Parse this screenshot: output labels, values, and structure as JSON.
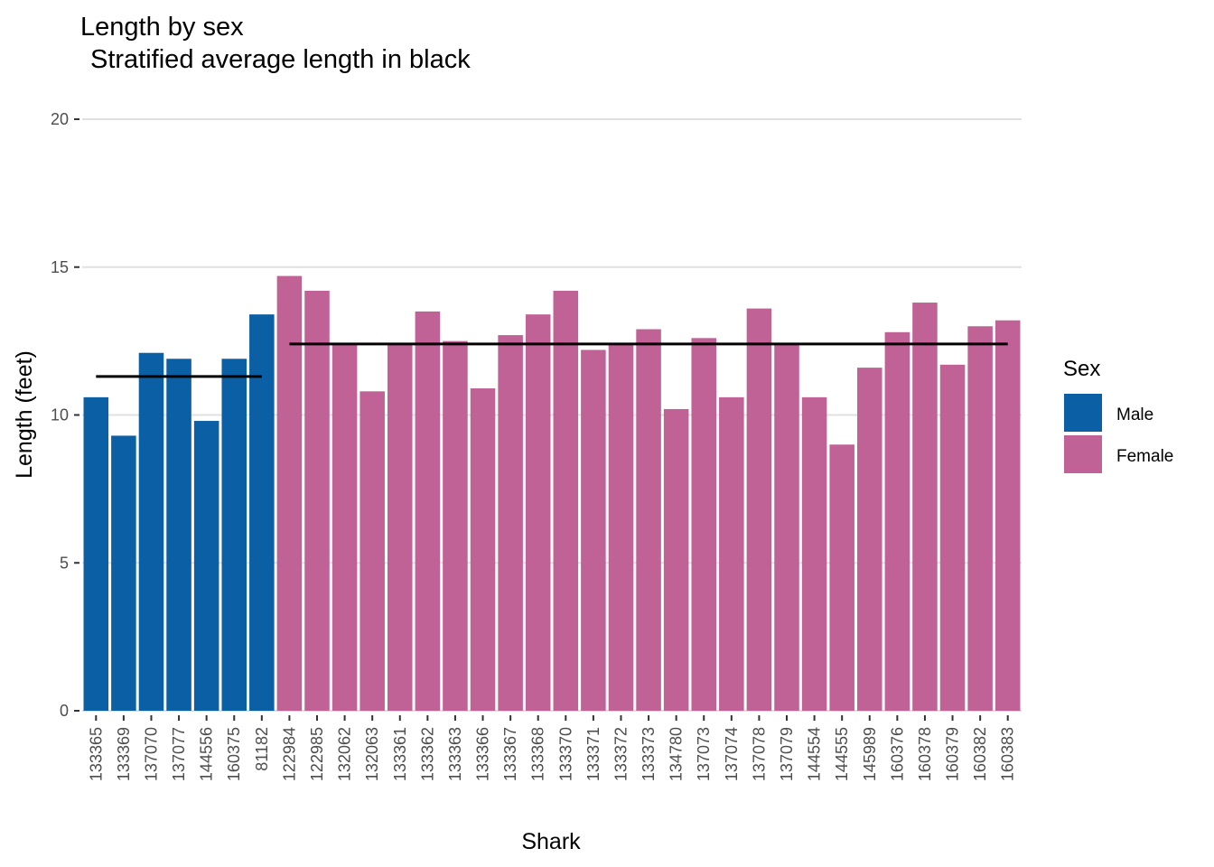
{
  "chart_data": {
    "type": "bar",
    "title": "Length by sex",
    "subtitle": "Stratified average length in black",
    "xlabel": "Shark",
    "ylabel": "Length (feet)",
    "ylim": [
      0,
      20
    ],
    "yticks": [
      0,
      5,
      10,
      15,
      20
    ],
    "grid": true,
    "legend": {
      "title": "Sex",
      "position": "right",
      "entries": [
        {
          "name": "Male",
          "color": "#0b5fa4"
        },
        {
          "name": "Female",
          "color": "#c06296"
        }
      ]
    },
    "categories": [
      "133365",
      "133369",
      "137070",
      "137077",
      "144556",
      "160375",
      "81182",
      "122984",
      "122985",
      "132062",
      "132063",
      "133361",
      "133362",
      "133363",
      "133366",
      "133367",
      "133368",
      "133370",
      "133371",
      "133372",
      "133373",
      "134780",
      "137073",
      "137074",
      "137078",
      "137079",
      "144554",
      "144555",
      "145989",
      "160376",
      "160378",
      "160379",
      "160382",
      "160383"
    ],
    "sex": [
      "Male",
      "Male",
      "Male",
      "Male",
      "Male",
      "Male",
      "Male",
      "Female",
      "Female",
      "Female",
      "Female",
      "Female",
      "Female",
      "Female",
      "Female",
      "Female",
      "Female",
      "Female",
      "Female",
      "Female",
      "Female",
      "Female",
      "Female",
      "Female",
      "Female",
      "Female",
      "Female",
      "Female",
      "Female",
      "Female",
      "Female",
      "Female",
      "Female",
      "Female"
    ],
    "values": [
      10.6,
      9.3,
      12.1,
      11.9,
      9.8,
      11.9,
      13.4,
      14.7,
      14.2,
      12.4,
      10.8,
      12.4,
      13.5,
      12.5,
      10.9,
      12.7,
      13.4,
      14.2,
      12.2,
      12.4,
      12.9,
      10.2,
      12.6,
      10.6,
      13.6,
      12.4,
      10.6,
      9.0,
      11.6,
      12.8,
      13.8,
      11.7,
      13.0,
      13.2
    ],
    "averages": [
      {
        "sex": "Male",
        "value": 11.3
      },
      {
        "sex": "Female",
        "value": 12.4
      }
    ],
    "colors": {
      "Male": "#0b5fa4",
      "Female": "#c06296",
      "average_line": "#000000",
      "grid": "#e0e0e0"
    }
  }
}
